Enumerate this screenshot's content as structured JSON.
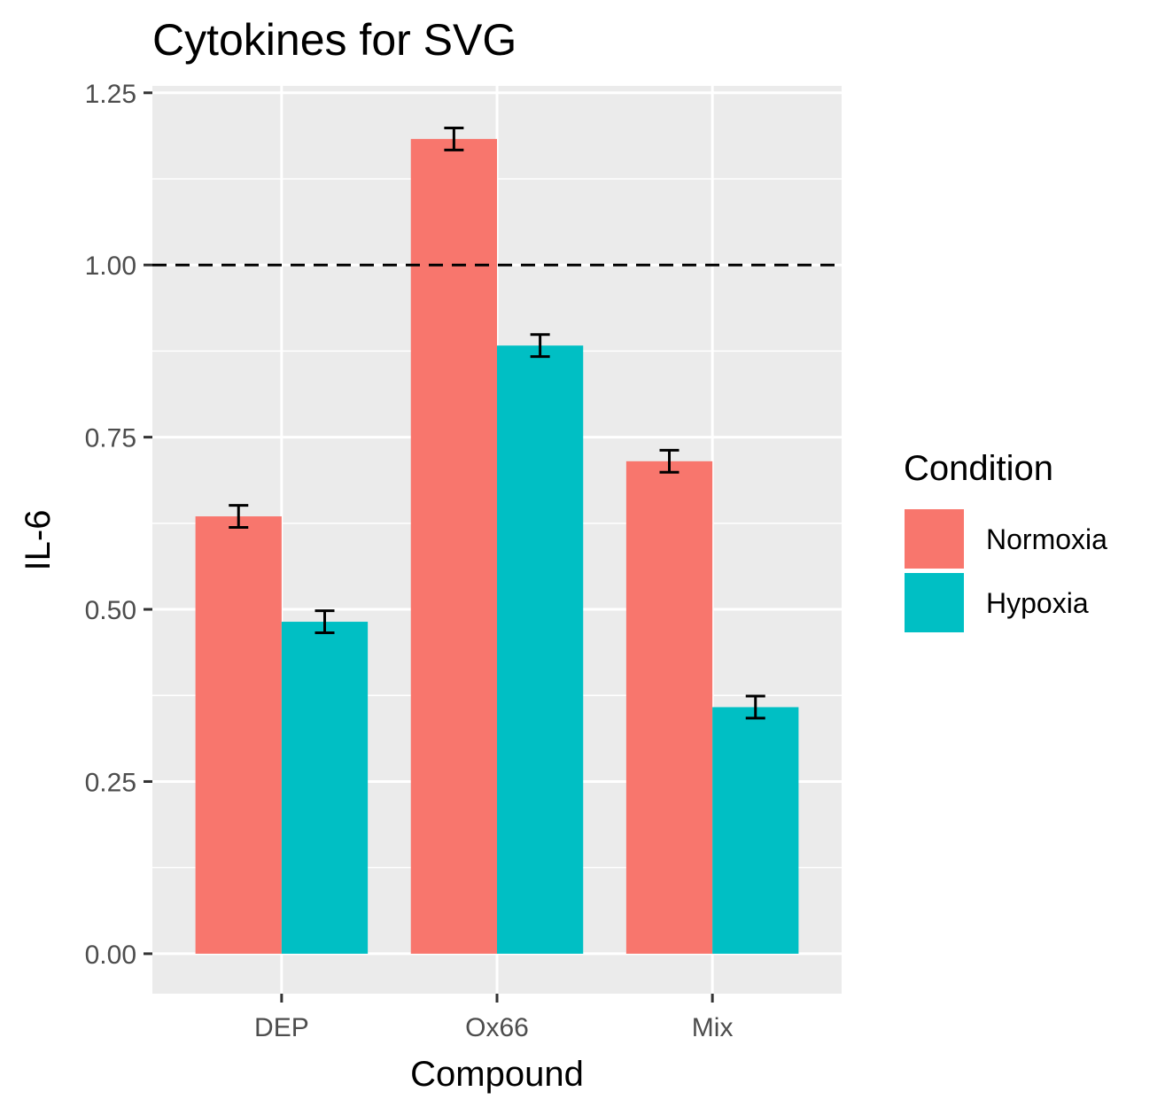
{
  "chart_data": {
    "type": "bar",
    "title": "Cytokines for SVG",
    "xlabel": "Compound",
    "ylabel": "IL-6",
    "categories": [
      "DEP",
      "Ox66",
      "Mix"
    ],
    "series": [
      {
        "name": "Normoxia",
        "color": "#F8766D",
        "values": [
          0.635,
          1.183,
          0.715
        ],
        "error": [
          0.016,
          0.016,
          0.016
        ]
      },
      {
        "name": "Hypoxia",
        "color": "#00BFC4",
        "values": [
          0.482,
          0.883,
          0.358
        ],
        "error": [
          0.016,
          0.016,
          0.016
        ]
      }
    ],
    "ylim": [
      -0.058,
      1.26
    ],
    "yticks": [
      "0.00",
      "0.25",
      "0.50",
      "0.75",
      "1.00",
      "1.25"
    ],
    "reference_line": {
      "y": 1.0,
      "style": "dashed",
      "color": "#000000"
    },
    "legend": {
      "title": "Condition",
      "position": "right"
    },
    "grid": true,
    "panel_background": "#EBEBEB"
  }
}
